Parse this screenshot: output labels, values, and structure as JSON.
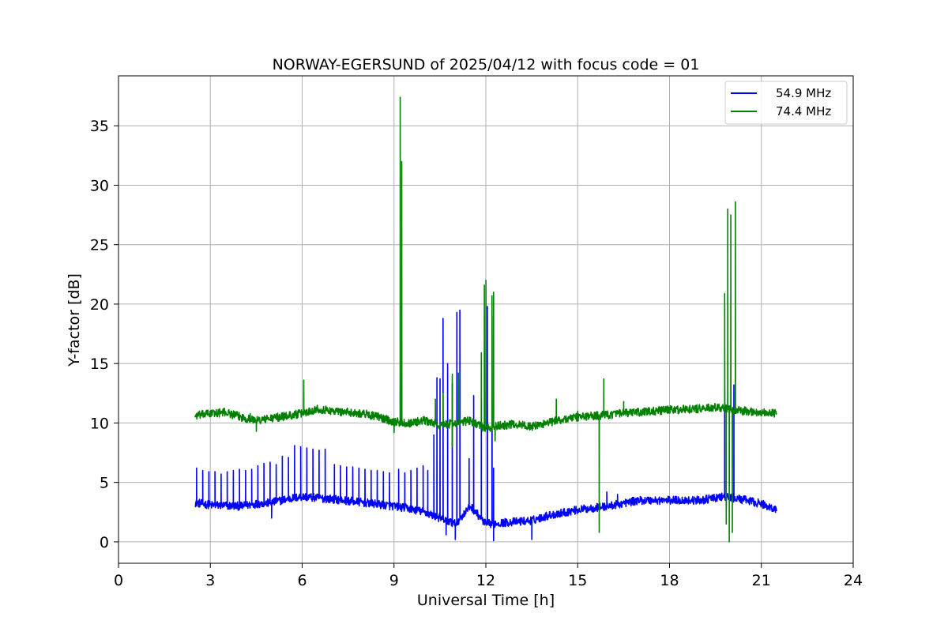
{
  "chart_data": {
    "type": "line",
    "title": "NORWAY-EGERSUND of 2025/04/12 with focus code = 01",
    "xlabel": "Universal Time [h]",
    "ylabel": "Y-factor [dB]",
    "xlim": [
      0,
      24
    ],
    "ylim": [
      -1.8,
      39.2
    ],
    "xticks": [
      0,
      3,
      6,
      9,
      12,
      15,
      18,
      21,
      24
    ],
    "yticks": [
      0,
      5,
      10,
      15,
      20,
      25,
      30,
      35
    ],
    "grid": true,
    "legend": "top-right",
    "series": [
      {
        "name": "54.9 MHz",
        "color": "#0000ff",
        "baseline": [
          [
            2.5,
            3.3
          ],
          [
            3.0,
            3.1
          ],
          [
            4.0,
            3.0
          ],
          [
            4.5,
            3.2
          ],
          [
            5.0,
            3.3
          ],
          [
            5.5,
            3.6
          ],
          [
            6.0,
            3.8
          ],
          [
            6.5,
            3.7
          ],
          [
            7.0,
            3.6
          ],
          [
            8.0,
            3.3
          ],
          [
            9.0,
            3.0
          ],
          [
            9.5,
            2.8
          ],
          [
            10.0,
            2.5
          ],
          [
            10.5,
            2.0
          ],
          [
            11.0,
            1.5
          ],
          [
            11.5,
            3.0
          ],
          [
            12.0,
            1.5
          ],
          [
            12.5,
            1.6
          ],
          [
            13.0,
            1.7
          ],
          [
            13.5,
            1.8
          ],
          [
            14.0,
            2.2
          ],
          [
            15.0,
            2.7
          ],
          [
            16.0,
            3.0
          ],
          [
            17.0,
            3.5
          ],
          [
            18.0,
            3.5
          ],
          [
            19.0,
            3.5
          ],
          [
            19.8,
            3.8
          ],
          [
            20.5,
            3.5
          ],
          [
            21.0,
            3.2
          ],
          [
            21.5,
            2.7
          ]
        ],
        "spikes": [
          [
            2.55,
            6.2
          ],
          [
            2.75,
            6.0
          ],
          [
            2.95,
            5.9
          ],
          [
            3.15,
            5.9
          ],
          [
            3.35,
            5.7
          ],
          [
            3.55,
            5.9
          ],
          [
            3.75,
            6.0
          ],
          [
            3.95,
            6.1
          ],
          [
            4.15,
            6.0
          ],
          [
            4.35,
            6.1
          ],
          [
            4.55,
            6.4
          ],
          [
            4.75,
            6.6
          ],
          [
            4.95,
            6.7
          ],
          [
            5.15,
            6.5
          ],
          [
            5.35,
            7.2
          ],
          [
            5.55,
            7.1
          ],
          [
            5.75,
            8.1
          ],
          [
            5.95,
            8.0
          ],
          [
            6.15,
            7.9
          ],
          [
            6.35,
            7.8
          ],
          [
            6.55,
            7.7
          ],
          [
            6.75,
            7.8
          ],
          [
            7.05,
            6.5
          ],
          [
            7.25,
            6.4
          ],
          [
            7.45,
            6.3
          ],
          [
            7.65,
            6.3
          ],
          [
            7.85,
            6.2
          ],
          [
            8.05,
            6.1
          ],
          [
            8.25,
            6.0
          ],
          [
            8.45,
            6.0
          ],
          [
            8.65,
            5.9
          ],
          [
            8.85,
            5.8
          ],
          [
            9.15,
            6.1
          ],
          [
            9.35,
            5.8
          ],
          [
            9.55,
            6.0
          ],
          [
            9.75,
            6.2
          ],
          [
            9.95,
            6.4
          ],
          [
            10.1,
            6.0
          ],
          [
            10.3,
            9.0
          ],
          [
            10.4,
            13.8
          ],
          [
            10.5,
            13.7
          ],
          [
            10.6,
            18.8
          ],
          [
            10.75,
            15.0
          ],
          [
            10.9,
            13.3
          ],
          [
            11.05,
            19.3
          ],
          [
            11.15,
            19.5
          ],
          [
            11.45,
            7.0
          ],
          [
            11.6,
            12.3
          ],
          [
            11.85,
            12.0
          ],
          [
            12.05,
            19.8
          ],
          [
            12.2,
            19.0
          ],
          [
            12.25,
            6.2
          ],
          [
            15.95,
            4.2
          ],
          [
            16.3,
            4.0
          ],
          [
            19.8,
            13.0
          ],
          [
            20.1,
            13.2
          ]
        ],
        "dips": [
          [
            5.0,
            2.0
          ],
          [
            10.7,
            0.6
          ],
          [
            11.0,
            0.2
          ],
          [
            12.25,
            0.1
          ],
          [
            13.5,
            0.2
          ],
          [
            19.85,
            2.8
          ]
        ]
      },
      {
        "name": "74.4 MHz",
        "color": "#008000",
        "baseline": [
          [
            2.5,
            10.6
          ],
          [
            3.0,
            10.8
          ],
          [
            3.5,
            10.9
          ],
          [
            4.0,
            10.5
          ],
          [
            4.5,
            10.2
          ],
          [
            5.0,
            10.4
          ],
          [
            5.5,
            10.6
          ],
          [
            6.0,
            10.8
          ],
          [
            6.5,
            11.2
          ],
          [
            7.0,
            11.0
          ],
          [
            7.5,
            10.9
          ],
          [
            8.0,
            10.8
          ],
          [
            8.5,
            10.5
          ],
          [
            9.0,
            10.1
          ],
          [
            9.5,
            10.0
          ],
          [
            10.0,
            10.2
          ],
          [
            10.5,
            9.8
          ],
          [
            11.0,
            10.0
          ],
          [
            11.5,
            10.2
          ],
          [
            12.0,
            9.5
          ],
          [
            12.5,
            9.8
          ],
          [
            13.0,
            9.9
          ],
          [
            13.5,
            9.7
          ],
          [
            14.0,
            10.0
          ],
          [
            14.5,
            10.3
          ],
          [
            15.0,
            10.5
          ],
          [
            15.5,
            10.6
          ],
          [
            16.0,
            10.7
          ],
          [
            17.0,
            10.9
          ],
          [
            18.0,
            11.1
          ],
          [
            19.0,
            11.2
          ],
          [
            19.5,
            11.3
          ],
          [
            20.0,
            11.1
          ],
          [
            20.5,
            11.0
          ],
          [
            21.0,
            10.9
          ],
          [
            21.5,
            10.8
          ]
        ],
        "spikes": [
          [
            4.3,
            10.8
          ],
          [
            6.05,
            13.6
          ],
          [
            6.9,
            11.3
          ],
          [
            9.2,
            37.4
          ],
          [
            9.25,
            32.0
          ],
          [
            10.35,
            12.0
          ],
          [
            10.6,
            12.5
          ],
          [
            10.9,
            14.1
          ],
          [
            11.1,
            14.2
          ],
          [
            11.85,
            15.9
          ],
          [
            11.95,
            21.6
          ],
          [
            12.0,
            22.0
          ],
          [
            12.2,
            20.7
          ],
          [
            12.25,
            21.0
          ],
          [
            14.3,
            12.0
          ],
          [
            15.0,
            11.0
          ],
          [
            15.85,
            13.7
          ],
          [
            16.5,
            11.8
          ],
          [
            19.8,
            20.9
          ],
          [
            19.9,
            28.0
          ],
          [
            20.0,
            27.5
          ],
          [
            20.15,
            28.6
          ]
        ],
        "dips": [
          [
            4.5,
            9.3
          ],
          [
            9.0,
            9.2
          ],
          [
            10.9,
            8.0
          ],
          [
            11.4,
            10.5
          ],
          [
            12.3,
            8.5
          ],
          [
            15.7,
            0.8
          ],
          [
            19.85,
            1.5
          ],
          [
            19.95,
            0.0
          ],
          [
            20.05,
            0.8
          ]
        ]
      }
    ]
  }
}
